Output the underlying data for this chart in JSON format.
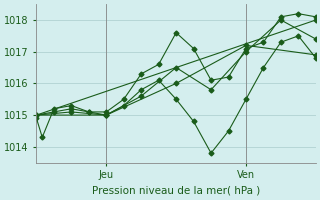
{
  "title": "",
  "xlabel": "Pression niveau de la mer( hPa )",
  "ylabel": "",
  "background_color": "#d4eeee",
  "grid_color": "#aacccc",
  "line_color": "#1a5c1a",
  "xlim": [
    0,
    48
  ],
  "ylim": [
    1013.5,
    1018.5
  ],
  "yticks": [
    1014,
    1015,
    1016,
    1017,
    1018
  ],
  "xtick_positions": [
    12,
    36
  ],
  "xtick_labels": [
    "Jeu",
    "Ven"
  ],
  "vline_positions": [
    12,
    36
  ],
  "series": [
    [
      0.0,
      1014.9,
      1.0,
      1014.3,
      3.0,
      1015.2,
      6.0,
      1015.3,
      9.0,
      1015.1,
      12.0,
      1015.1,
      15.0,
      1015.5,
      18.0,
      1016.3,
      21.0,
      1016.6,
      24.0,
      1017.6,
      27.0,
      1017.1,
      30.0,
      1016.1,
      33.0,
      1016.2,
      36.0,
      1017.1,
      39.0,
      1017.3,
      42.0,
      1018.1,
      45.0,
      1018.2,
      48.0,
      1018.1
    ],
    [
      0.0,
      1015.0,
      3.0,
      1015.1,
      6.0,
      1015.2,
      9.0,
      1015.1,
      12.0,
      1015.0,
      15.0,
      1015.3,
      18.0,
      1015.8,
      21.0,
      1016.1,
      24.0,
      1015.5,
      27.0,
      1014.8,
      30.0,
      1013.8,
      33.0,
      1014.5,
      36.0,
      1015.5,
      39.0,
      1016.5,
      42.0,
      1017.3,
      45.0,
      1017.5,
      48.0,
      1016.8
    ],
    [
      0.0,
      1015.0,
      6.0,
      1015.1,
      12.0,
      1015.0,
      18.0,
      1015.6,
      24.0,
      1016.5,
      30.0,
      1015.8,
      36.0,
      1017.0,
      42.0,
      1018.0,
      48.0,
      1017.4
    ],
    [
      0.0,
      1015.0,
      12.0,
      1015.0,
      24.0,
      1016.0,
      36.0,
      1017.2,
      48.0,
      1016.9
    ],
    [
      0.0,
      1015.0,
      48.0,
      1018.0
    ]
  ]
}
